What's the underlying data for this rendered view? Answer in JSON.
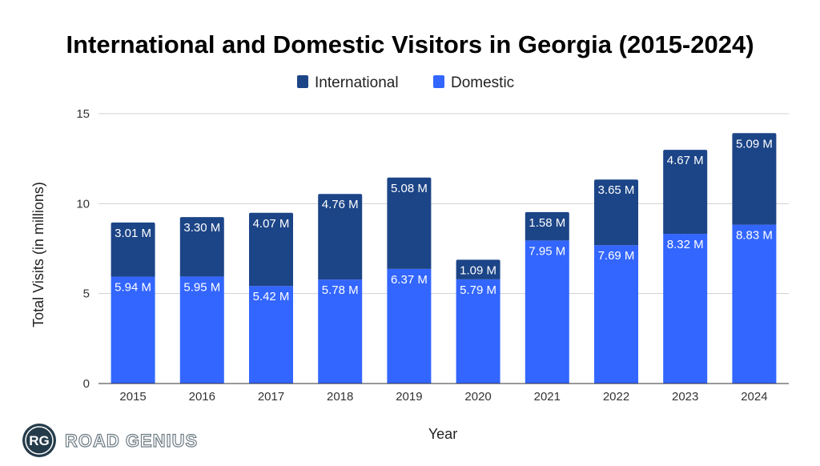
{
  "chart_data": {
    "type": "bar",
    "stacked": true,
    "title": "International and Domestic Visitors in Georgia (2015-2024)",
    "xlabel": "Year",
    "ylabel": "Total Visits (in millions)",
    "ylim": [
      0,
      15
    ],
    "yticks": [
      "0",
      "5",
      "10",
      "15"
    ],
    "grid": true,
    "legend_position": "top",
    "categories": [
      "2015",
      "2016",
      "2017",
      "2018",
      "2019",
      "2020",
      "2021",
      "2022",
      "2023",
      "2024"
    ],
    "series": [
      {
        "name": "Domestic",
        "color": "#3366ff",
        "values": [
          5.94,
          5.95,
          5.42,
          5.78,
          6.37,
          5.79,
          7.95,
          7.69,
          8.32,
          8.83
        ],
        "labels": [
          "5.94 M",
          "5.95 M",
          "5.42 M",
          "5.78 M",
          "6.37 M",
          "5.79 M",
          "7.95 M",
          "7.69 M",
          "8.32 M",
          "8.83 M"
        ]
      },
      {
        "name": "International",
        "color": "#1c4587",
        "values": [
          3.01,
          3.3,
          4.07,
          4.76,
          5.08,
          1.09,
          1.58,
          3.65,
          4.67,
          5.09
        ],
        "labels": [
          "3.01 M",
          "3.30 M",
          "4.07 M",
          "4.76 M",
          "5.08 M",
          "1.09 M",
          "1.58 M",
          "3.65 M",
          "4.67 M",
          "5.09 M"
        ]
      }
    ],
    "legend": [
      "International",
      "Domestic"
    ]
  },
  "branding": {
    "logo_mark": "RG",
    "logo_text": "ROAD GENIUS"
  }
}
